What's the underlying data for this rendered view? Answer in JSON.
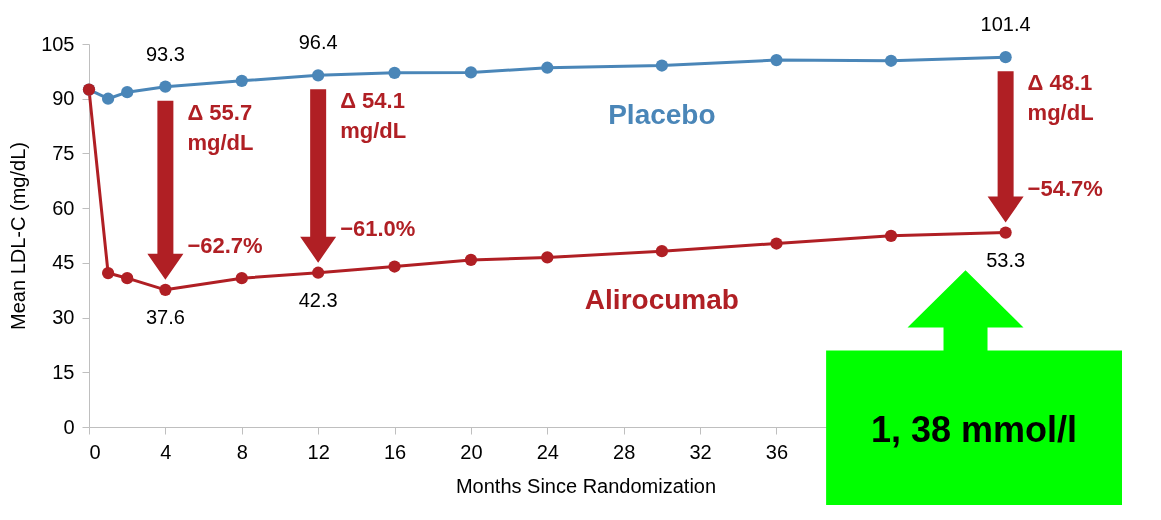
{
  "chart_data": {
    "type": "line",
    "xlabel": "Months Since Randomization",
    "ylabel": "Mean LDL-C (mg/dL)",
    "x": [
      0,
      1,
      2,
      4,
      8,
      12,
      16,
      20,
      24,
      30,
      36,
      42,
      48
    ],
    "series": [
      {
        "name": "Placebo",
        "color": "#4a86b8",
        "values": [
          92.5,
          90,
          91.8,
          93.3,
          94.9,
          96.4,
          97.1,
          97.2,
          98.5,
          99.1,
          100.6,
          100.4,
          101.4
        ],
        "value_labels": [
          null,
          null,
          null,
          "93.3",
          null,
          "96.4",
          null,
          null,
          null,
          null,
          null,
          null,
          "101.4"
        ]
      },
      {
        "name": "Alirocumab",
        "color": "#b01f24",
        "values": [
          92.5,
          42.2,
          40.8,
          37.6,
          40.8,
          42.3,
          44.0,
          45.8,
          46.5,
          48.2,
          50.3,
          52.4,
          53.3
        ],
        "value_labels": [
          null,
          null,
          null,
          "37.6",
          null,
          "42.3",
          null,
          null,
          null,
          null,
          null,
          null,
          "53.3"
        ]
      }
    ],
    "xlim": [
      0,
      52
    ],
    "xticks": [
      0,
      4,
      8,
      12,
      16,
      20,
      24,
      28,
      32,
      36
    ],
    "ylim": [
      0,
      105
    ],
    "yticks": [
      0,
      15,
      30,
      45,
      60,
      75,
      90,
      105
    ],
    "marker": "circle",
    "line_style": "solid",
    "legend": false,
    "annotations": [
      {
        "text": "Δ 55.7\nmg/dL",
        "x": 4,
        "y": 93.3
      },
      {
        "text": "−62.7%",
        "x": 4,
        "y": 37.6
      },
      {
        "text": "Δ 54.1\nmg/dL",
        "x": 12,
        "y": 96.4
      },
      {
        "text": "−61.0%",
        "x": 12,
        "y": 42.3
      },
      {
        "text": "Δ 48.1\nmg/dL",
        "x": 48,
        "y": 101.4
      },
      {
        "text": "−54.7%",
        "x": 48,
        "y": 53.3
      },
      "1, 38 mmol/l"
    ]
  }
}
